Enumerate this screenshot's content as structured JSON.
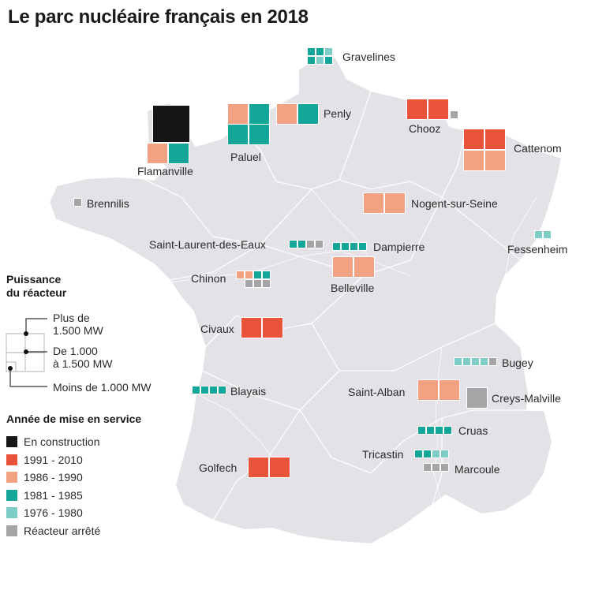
{
  "title": "Le parc nucléaire français en 2018",
  "colors": {
    "en_construction": "#161616",
    "1991_2010": "#e8533a",
    "1986_1990": "#f2a282",
    "1981_1985": "#15a69a",
    "1976_1980": "#7fcdc7",
    "arrete": "#a5a5a7",
    "map_fill": "#e4e2e7"
  },
  "plants": [
    {
      "name": "Gravelines",
      "reactors": [
        {
          "power": "lt1000",
          "period": "1981_1985"
        },
        {
          "power": "lt1000",
          "period": "1981_1985"
        },
        {
          "power": "lt1000",
          "period": "1976_1980"
        },
        {
          "power": "lt1000",
          "period": "1981_1985"
        },
        {
          "power": "lt1000",
          "period": "1976_1980"
        },
        {
          "power": "lt1000",
          "period": "1981_1985"
        }
      ]
    },
    {
      "name": "Flamanville",
      "reactors": [
        {
          "power": "gt1500",
          "period": "en_construction"
        },
        {
          "power": "1000_1500",
          "period": "1986_1990"
        },
        {
          "power": "1000_1500",
          "period": "1981_1985"
        }
      ]
    },
    {
      "name": "Paluel",
      "reactors": [
        {
          "power": "1000_1500",
          "period": "1986_1990"
        },
        {
          "power": "1000_1500",
          "period": "1981_1985"
        },
        {
          "power": "1000_1500",
          "period": "1981_1985"
        },
        {
          "power": "1000_1500",
          "period": "1981_1985"
        }
      ]
    },
    {
      "name": "Penly",
      "reactors": [
        {
          "power": "1000_1500",
          "period": "1986_1990"
        },
        {
          "power": "1000_1500",
          "period": "1981_1985"
        }
      ]
    },
    {
      "name": "Chooz",
      "reactors": [
        {
          "power": "1000_1500",
          "period": "1991_2010"
        },
        {
          "power": "1000_1500",
          "period": "1991_2010"
        },
        {
          "power": "lt1000",
          "period": "arrete"
        }
      ]
    },
    {
      "name": "Cattenom",
      "reactors": [
        {
          "power": "1000_1500",
          "period": "1991_2010"
        },
        {
          "power": "1000_1500",
          "period": "1991_2010"
        },
        {
          "power": "1000_1500",
          "period": "1986_1990"
        },
        {
          "power": "1000_1500",
          "period": "1986_1990"
        }
      ]
    },
    {
      "name": "Brennilis",
      "reactors": [
        {
          "power": "lt1000",
          "period": "arrete"
        }
      ]
    },
    {
      "name": "Nogent-sur-Seine",
      "reactors": [
        {
          "power": "1000_1500",
          "period": "1986_1990"
        },
        {
          "power": "1000_1500",
          "period": "1986_1990"
        }
      ]
    },
    {
      "name": "Saint-Laurent-des-Eaux",
      "reactors": [
        {
          "power": "lt1000",
          "period": "1981_1985"
        },
        {
          "power": "lt1000",
          "period": "1981_1985"
        },
        {
          "power": "lt1000",
          "period": "arrete"
        },
        {
          "power": "lt1000",
          "period": "arrete"
        }
      ]
    },
    {
      "name": "Dampierre",
      "reactors": [
        {
          "power": "lt1000",
          "period": "1981_1985"
        },
        {
          "power": "lt1000",
          "period": "1981_1985"
        },
        {
          "power": "lt1000",
          "period": "1981_1985"
        },
        {
          "power": "lt1000",
          "period": "1981_1985"
        }
      ]
    },
    {
      "name": "Fessenheim",
      "reactors": [
        {
          "power": "lt1000",
          "period": "1976_1980"
        },
        {
          "power": "lt1000",
          "period": "1976_1980"
        }
      ]
    },
    {
      "name": "Chinon",
      "reactors": [
        {
          "power": "lt1000",
          "period": "1986_1990"
        },
        {
          "power": "lt1000",
          "period": "1986_1990"
        },
        {
          "power": "lt1000",
          "period": "1981_1985"
        },
        {
          "power": "lt1000",
          "period": "1981_1985"
        },
        {
          "power": "lt1000",
          "period": "arrete"
        },
        {
          "power": "lt1000",
          "period": "arrete"
        },
        {
          "power": "lt1000",
          "period": "arrete"
        }
      ]
    },
    {
      "name": "Belleville",
      "reactors": [
        {
          "power": "1000_1500",
          "period": "1986_1990"
        },
        {
          "power": "1000_1500",
          "period": "1986_1990"
        }
      ]
    },
    {
      "name": "Civaux",
      "reactors": [
        {
          "power": "1000_1500",
          "period": "1991_2010"
        },
        {
          "power": "1000_1500",
          "period": "1991_2010"
        }
      ]
    },
    {
      "name": "Bugey",
      "reactors": [
        {
          "power": "lt1000",
          "period": "1976_1980"
        },
        {
          "power": "lt1000",
          "period": "1976_1980"
        },
        {
          "power": "lt1000",
          "period": "1976_1980"
        },
        {
          "power": "lt1000",
          "period": "1976_1980"
        },
        {
          "power": "lt1000",
          "period": "arrete"
        }
      ]
    },
    {
      "name": "Blayais",
      "reactors": [
        {
          "power": "lt1000",
          "period": "1981_1985"
        },
        {
          "power": "lt1000",
          "period": "1981_1985"
        },
        {
          "power": "lt1000",
          "period": "1981_1985"
        },
        {
          "power": "lt1000",
          "period": "1981_1985"
        }
      ]
    },
    {
      "name": "Saint-Alban",
      "reactors": [
        {
          "power": "1000_1500",
          "period": "1986_1990"
        },
        {
          "power": "1000_1500",
          "period": "1986_1990"
        }
      ]
    },
    {
      "name": "Creys-Malville",
      "reactors": [
        {
          "power": "1000_1500",
          "period": "arrete"
        }
      ]
    },
    {
      "name": "Cruas",
      "reactors": [
        {
          "power": "lt1000",
          "period": "1981_1985"
        },
        {
          "power": "lt1000",
          "period": "1981_1985"
        },
        {
          "power": "lt1000",
          "period": "1981_1985"
        },
        {
          "power": "lt1000",
          "period": "1981_1985"
        }
      ]
    },
    {
      "name": "Tricastin",
      "reactors": [
        {
          "power": "lt1000",
          "period": "1981_1985"
        },
        {
          "power": "lt1000",
          "period": "1981_1985"
        },
        {
          "power": "lt1000",
          "period": "1976_1980"
        },
        {
          "power": "lt1000",
          "period": "1976_1980"
        }
      ]
    },
    {
      "name": "Marcoule",
      "reactors": [
        {
          "power": "lt1000",
          "period": "arrete"
        },
        {
          "power": "lt1000",
          "period": "arrete"
        },
        {
          "power": "lt1000",
          "period": "arrete"
        }
      ]
    },
    {
      "name": "Golfech",
      "reactors": [
        {
          "power": "1000_1500",
          "period": "1991_2010"
        },
        {
          "power": "1000_1500",
          "period": "1991_2010"
        }
      ]
    }
  ],
  "legend": {
    "power_title": "Puissance\ndu réacteur",
    "power_items": [
      "Plus de\n1.500 MW",
      "De 1.000\nà 1.500 MW",
      "Moins de 1.000 MW"
    ],
    "year_title": "Année de mise en service",
    "year_items": [
      {
        "key": "en_construction",
        "label": "En construction"
      },
      {
        "key": "1991_2010",
        "label": "1991 - 2010"
      },
      {
        "key": "1986_1990",
        "label": "1986 - 1990"
      },
      {
        "key": "1981_1985",
        "label": "1981 - 1985"
      },
      {
        "key": "1976_1980",
        "label": "1976 - 1980"
      },
      {
        "key": "arrete",
        "label": "Réacteur arrêté"
      }
    ]
  }
}
